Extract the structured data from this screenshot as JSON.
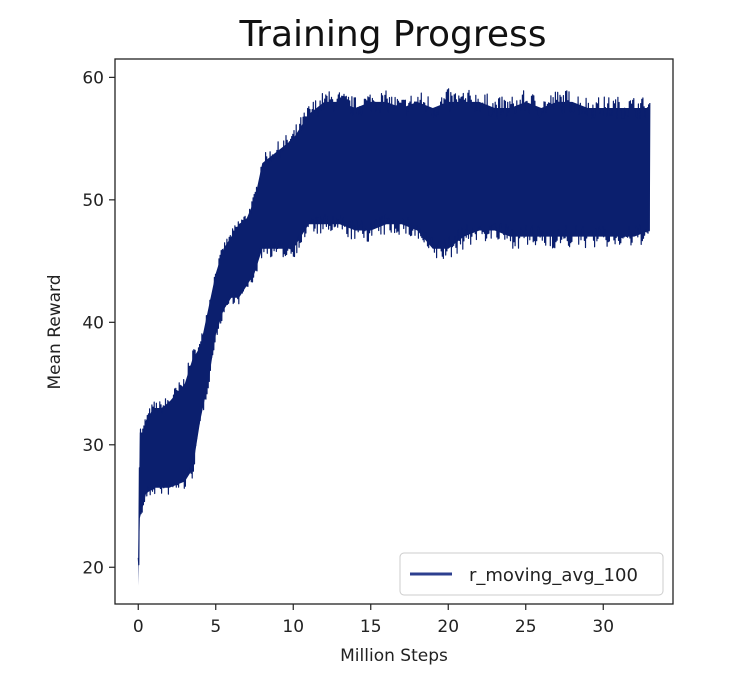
{
  "chart_data": {
    "type": "line",
    "title": "Training Progress",
    "xlabel": "Million Steps",
    "ylabel": "Mean Reward",
    "xlim": [
      -1.5,
      34.5
    ],
    "ylim": [
      17,
      61.5
    ],
    "xticks": [
      0,
      5,
      10,
      15,
      20,
      25,
      30
    ],
    "yticks": [
      20,
      30,
      40,
      50,
      60
    ],
    "grid": false,
    "legend_position": "lower right",
    "series": [
      {
        "name": "r_moving_avg_100",
        "color": "#0b1f6e",
        "x": [
          0,
          0.1,
          0.3,
          0.5,
          1,
          1.5,
          2,
          3,
          3.5,
          4,
          4.5,
          5,
          5.5,
          6,
          6.5,
          7,
          7.5,
          8,
          9,
          10,
          11,
          12,
          13,
          14,
          15,
          16,
          17,
          18,
          19,
          20,
          21,
          22,
          23,
          24,
          25,
          26,
          27,
          28,
          29,
          30,
          31,
          32,
          33
        ],
        "upper": [
          21,
          31,
          31,
          32,
          33,
          33,
          33.5,
          35,
          37,
          38,
          41,
          44,
          46,
          47,
          48,
          48.5,
          50,
          53,
          54,
          55,
          57,
          58,
          58,
          57.5,
          58,
          58,
          57.5,
          58,
          57.5,
          58,
          58,
          58,
          57.5,
          57.5,
          58,
          57.5,
          58,
          58,
          57.5,
          57.5,
          57.5,
          57.5,
          57.5
        ],
        "lower": [
          18.5,
          24,
          25,
          26,
          26.5,
          26.5,
          26.5,
          27,
          28,
          32,
          35,
          39,
          41,
          42,
          42,
          43,
          44,
          46,
          46,
          46,
          48,
          48,
          48,
          47.5,
          47.5,
          48,
          48,
          47.5,
          46,
          46,
          47,
          47.5,
          47.5,
          47,
          47,
          47,
          47,
          47,
          47,
          47,
          47,
          47,
          47.5
        ]
      }
    ]
  }
}
